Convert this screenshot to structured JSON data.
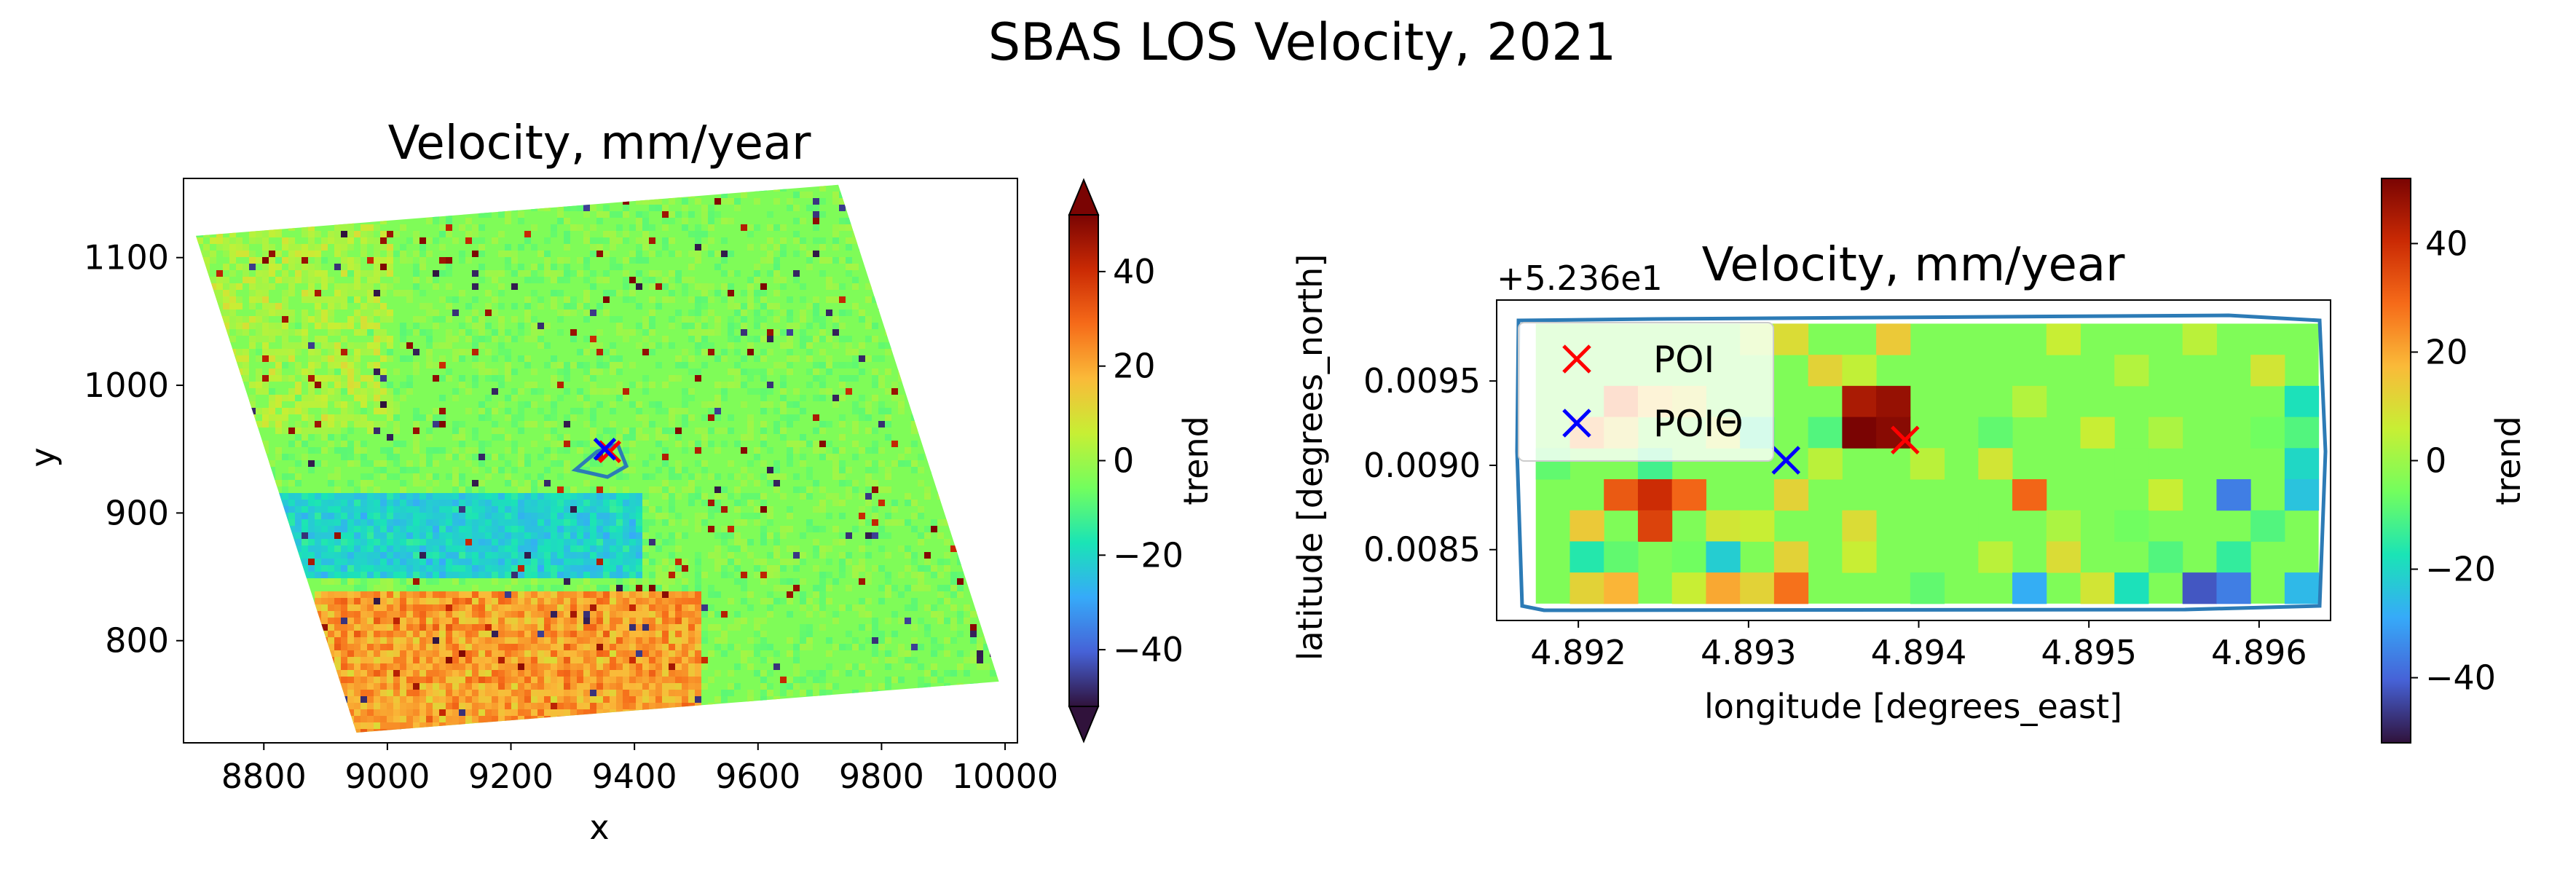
{
  "figure": {
    "suptitle": "SBAS LOS Velocity, 2021"
  },
  "colors": {
    "cmap_turbo": [
      "#30123b",
      "#4662d7",
      "#36aaf9",
      "#1ae4b6",
      "#72fe5e",
      "#c7ef34",
      "#faba39",
      "#f66b19",
      "#ca2a04",
      "#7a0403"
    ],
    "poi": "#ff0000",
    "poi0": "#0000ff",
    "boundary": "#2c7bb6",
    "background": "#ffffff"
  },
  "chart_data": [
    {
      "type": "heatmap",
      "title": "Velocity, mm/year",
      "xlabel": "x",
      "ylabel": "y",
      "xlim": [
        8670,
        10020
      ],
      "ylim": [
        720,
        1162
      ],
      "xticks": [
        8800,
        9000,
        9200,
        9400,
        9600,
        9800,
        10000
      ],
      "yticks": [
        800,
        900,
        1000,
        1100
      ],
      "swath_corners": [
        [
          8690,
          1117
        ],
        [
          9730,
          1157
        ],
        [
          9990,
          768
        ],
        [
          8950,
          728
        ]
      ],
      "colorbar": {
        "label": "trend",
        "range": [
          -52,
          52
        ],
        "ticks": [
          40,
          20,
          0,
          -20,
          -40
        ],
        "extend": "both"
      },
      "markers": [
        {
          "name": "POI",
          "x": 9360,
          "y": 948,
          "symbol": "x",
          "color": "#ff0000"
        },
        {
          "name": "POI0",
          "x": 9352,
          "y": 950,
          "symbol": "x",
          "color": "#0000ff"
        }
      ]
    },
    {
      "type": "heatmap",
      "title": "Velocity, mm/year",
      "xlabel": "longitude [degrees_east]",
      "ylabel": "latitude [degrees_north]",
      "offset_label": "+5.236e1",
      "xlim": [
        4.89152,
        4.89642
      ],
      "ylim": [
        0.00808,
        0.00998
      ],
      "xticks": [
        4.892,
        4.893,
        4.894,
        4.895,
        4.896
      ],
      "yticks": [
        0.0085,
        0.009,
        0.0095
      ],
      "xtick_labels": [
        "4.892",
        "4.893",
        "4.894",
        "4.895",
        "4.896"
      ],
      "ytick_labels": [
        "0.0085",
        "0.0090",
        "0.0095"
      ],
      "grid_extent": {
        "x": [
          4.89175,
          4.89635
        ],
        "y": [
          0.00818,
          0.00984
        ]
      },
      "grid_shape": {
        "cols": 23,
        "rows": 9
      },
      "colorbar": {
        "label": "trend",
        "range": [
          -52,
          52
        ],
        "ticks": [
          40,
          20,
          0,
          -20,
          -40
        ],
        "extend": "neither"
      },
      "cells": [
        [
          0,
          6,
          3
        ],
        [
          0,
          7,
          10
        ],
        [
          0,
          10,
          14
        ],
        [
          0,
          15,
          6
        ],
        [
          0,
          19,
          4
        ],
        [
          1,
          8,
          12
        ],
        [
          1,
          9,
          5
        ],
        [
          1,
          17,
          3
        ],
        [
          1,
          21,
          8
        ],
        [
          2,
          2,
          30
        ],
        [
          2,
          3,
          16
        ],
        [
          2,
          4,
          10
        ],
        [
          2,
          9,
          45
        ],
        [
          2,
          10,
          48
        ],
        [
          2,
          14,
          3
        ],
        [
          2,
          22,
          -18
        ],
        [
          3,
          1,
          24
        ],
        [
          3,
          2,
          12
        ],
        [
          3,
          5,
          8
        ],
        [
          3,
          6,
          -14
        ],
        [
          3,
          8,
          -10
        ],
        [
          3,
          9,
          52
        ],
        [
          3,
          10,
          50
        ],
        [
          3,
          13,
          -8
        ],
        [
          3,
          16,
          6
        ],
        [
          3,
          18,
          2
        ],
        [
          3,
          21,
          -6
        ],
        [
          3,
          22,
          -10
        ],
        [
          4,
          0,
          -8
        ],
        [
          4,
          3,
          -12
        ],
        [
          4,
          8,
          4
        ],
        [
          4,
          11,
          4
        ],
        [
          4,
          13,
          8
        ],
        [
          4,
          17,
          -4
        ],
        [
          4,
          22,
          -20
        ],
        [
          5,
          2,
          32
        ],
        [
          5,
          3,
          40
        ],
        [
          5,
          4,
          30
        ],
        [
          5,
          7,
          12
        ],
        [
          5,
          14,
          30
        ],
        [
          5,
          18,
          6
        ],
        [
          5,
          20,
          -36
        ],
        [
          5,
          22,
          -24
        ],
        [
          6,
          1,
          14
        ],
        [
          6,
          3,
          36
        ],
        [
          6,
          5,
          8
        ],
        [
          6,
          6,
          6
        ],
        [
          6,
          9,
          10
        ],
        [
          6,
          12,
          -4
        ],
        [
          6,
          15,
          2
        ],
        [
          6,
          17,
          -6
        ],
        [
          6,
          21,
          -10
        ],
        [
          7,
          1,
          -16
        ],
        [
          7,
          2,
          -8
        ],
        [
          7,
          4,
          -6
        ],
        [
          7,
          5,
          -22
        ],
        [
          7,
          7,
          12
        ],
        [
          7,
          9,
          6
        ],
        [
          7,
          13,
          4
        ],
        [
          7,
          15,
          10
        ],
        [
          7,
          18,
          -10
        ],
        [
          7,
          20,
          -14
        ],
        [
          8,
          1,
          12
        ],
        [
          8,
          2,
          18
        ],
        [
          8,
          4,
          6
        ],
        [
          8,
          5,
          20
        ],
        [
          8,
          6,
          12
        ],
        [
          8,
          7,
          28
        ],
        [
          8,
          11,
          -8
        ],
        [
          8,
          14,
          -28
        ],
        [
          8,
          16,
          8
        ],
        [
          8,
          17,
          -18
        ],
        [
          8,
          19,
          -42
        ],
        [
          8,
          20,
          -36
        ],
        [
          8,
          22,
          -26
        ]
      ],
      "markers": [
        {
          "name": "POI",
          "x": 4.89392,
          "y": 0.00915,
          "symbol": "x",
          "color": "#ff0000"
        },
        {
          "name": "POIΘ",
          "x": 4.89322,
          "y": 0.00903,
          "symbol": "x",
          "color": "#0000ff"
        }
      ],
      "legend": {
        "location": "upper left",
        "entries": [
          "POI",
          "POIΘ"
        ]
      }
    }
  ]
}
